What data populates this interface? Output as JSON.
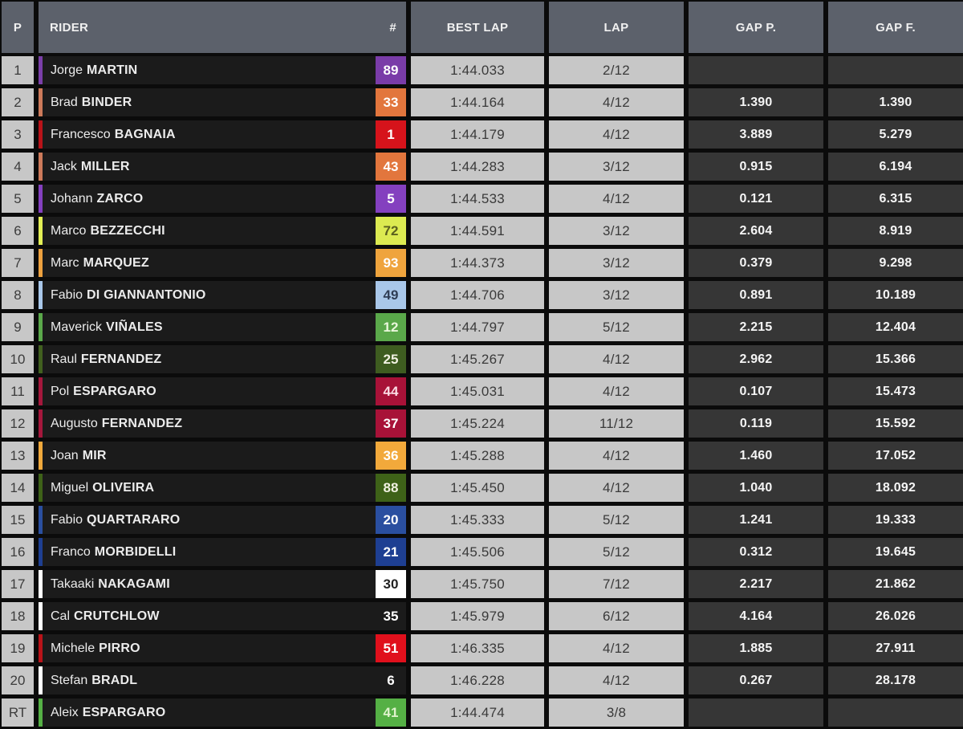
{
  "table_name": "motogp-session-timing",
  "columns": [
    {
      "label": "P"
    },
    {
      "label": "RIDER"
    },
    {
      "label": "#"
    },
    {
      "label": "BEST LAP"
    },
    {
      "label": "LAP"
    },
    {
      "label": "GAP P."
    },
    {
      "label": "GAP F."
    }
  ],
  "palette": {
    "header_bg": "#5c616b",
    "light_cell_bg": "#c7c7c7",
    "dark_cell_bg": "#363636",
    "rider_cell_bg": "#1b1b1b",
    "background": "#0b0b0b"
  },
  "rows": [
    {
      "pos": "1",
      "first": "Jorge",
      "last": "MARTIN",
      "num": "89",
      "best": "1:44.033",
      "lap": "2/12",
      "gap_p": "",
      "gap_f": "",
      "stripe": "#7b3fa9",
      "plate_bg": "#7a3ca8",
      "plate_fg": "#ffffff"
    },
    {
      "pos": "2",
      "first": "Brad",
      "last": "BINDER",
      "num": "33",
      "best": "1:44.164",
      "lap": "4/12",
      "gap_p": "1.390",
      "gap_f": "1.390",
      "stripe": "#cd7a5a",
      "plate_bg": "#e2763d",
      "plate_fg": "#ffffff"
    },
    {
      "pos": "3",
      "first": "Francesco",
      "last": "BAGNAIA",
      "num": "1",
      "best": "1:44.179",
      "lap": "4/12",
      "gap_p": "3.889",
      "gap_f": "5.279",
      "stripe": "#b91319",
      "plate_bg": "#d6131b",
      "plate_fg": "#ffffff"
    },
    {
      "pos": "4",
      "first": "Jack",
      "last": "MILLER",
      "num": "43",
      "best": "1:44.283",
      "lap": "3/12",
      "gap_p": "0.915",
      "gap_f": "6.194",
      "stripe": "#cd7a5a",
      "plate_bg": "#e2763d",
      "plate_fg": "#ffffff"
    },
    {
      "pos": "5",
      "first": "Johann",
      "last": "ZARCO",
      "num": "5",
      "best": "1:44.533",
      "lap": "4/12",
      "gap_p": "0.121",
      "gap_f": "6.315",
      "stripe": "#8440bf",
      "plate_bg": "#8440bf",
      "plate_fg": "#ffffff"
    },
    {
      "pos": "6",
      "first": "Marco",
      "last": "BEZZECCHI",
      "num": "72",
      "best": "1:44.591",
      "lap": "3/12",
      "gap_p": "2.604",
      "gap_f": "8.919",
      "stripe": "#e3ef56",
      "plate_bg": "#dcea51",
      "plate_fg": "#5a5f1e"
    },
    {
      "pos": "7",
      "first": "Marc",
      "last": "MARQUEZ",
      "num": "93",
      "best": "1:44.373",
      "lap": "3/12",
      "gap_p": "0.379",
      "gap_f": "9.298",
      "stripe": "#eda13f",
      "plate_bg": "#efa43d",
      "plate_fg": "#ffffff"
    },
    {
      "pos": "8",
      "first": "Fabio",
      "last": "DI GIANNANTONIO",
      "num": "49",
      "best": "1:44.706",
      "lap": "3/12",
      "gap_p": "0.891",
      "gap_f": "10.189",
      "stripe": "#a9c7e9",
      "plate_bg": "#a9c7e9",
      "plate_fg": "#2f3d55"
    },
    {
      "pos": "9",
      "first": "Maverick",
      "last": "VIÑALES",
      "num": "12",
      "best": "1:44.797",
      "lap": "5/12",
      "gap_p": "2.215",
      "gap_f": "12.404",
      "stripe": "#5aa84a",
      "plate_bg": "#5aa84a",
      "plate_fg": "#eaf7dc"
    },
    {
      "pos": "10",
      "first": "Raul",
      "last": "FERNANDEZ",
      "num": "25",
      "best": "1:45.267",
      "lap": "4/12",
      "gap_p": "2.962",
      "gap_f": "15.366",
      "stripe": "#41601f",
      "plate_bg": "#3e5c20",
      "plate_fg": "#f1f1e2"
    },
    {
      "pos": "11",
      "first": "Pol",
      "last": "ESPARGARO",
      "num": "44",
      "best": "1:45.031",
      "lap": "4/12",
      "gap_p": "0.107",
      "gap_f": "15.473",
      "stripe": "#a5173c",
      "plate_bg": "#a81238",
      "plate_fg": "#fbdce4"
    },
    {
      "pos": "12",
      "first": "Augusto",
      "last": "FERNANDEZ",
      "num": "37",
      "best": "1:45.224",
      "lap": "11/12",
      "gap_p": "0.119",
      "gap_f": "15.592",
      "stripe": "#a5173c",
      "plate_bg": "#a81238",
      "plate_fg": "#ffffff"
    },
    {
      "pos": "13",
      "first": "Joan",
      "last": "MIR",
      "num": "36",
      "best": "1:45.288",
      "lap": "4/12",
      "gap_p": "1.460",
      "gap_f": "17.052",
      "stripe": "#f0a93c",
      "plate_bg": "#f2a93b",
      "plate_fg": "#ffffff"
    },
    {
      "pos": "14",
      "first": "Miguel",
      "last": "OLIVEIRA",
      "num": "88",
      "best": "1:45.450",
      "lap": "4/12",
      "gap_p": "1.040",
      "gap_f": "18.092",
      "stripe": "#3e6218",
      "plate_bg": "#3e6218",
      "plate_fg": "#f1f1e2"
    },
    {
      "pos": "15",
      "first": "Fabio",
      "last": "QUARTARARO",
      "num": "20",
      "best": "1:45.333",
      "lap": "5/12",
      "gap_p": "1.241",
      "gap_f": "19.333",
      "stripe": "#2a4fa0",
      "plate_bg": "#2a4fa0",
      "plate_fg": "#ffffff"
    },
    {
      "pos": "16",
      "first": "Franco",
      "last": "MORBIDELLI",
      "num": "21",
      "best": "1:45.506",
      "lap": "5/12",
      "gap_p": "0.312",
      "gap_f": "19.645",
      "stripe": "#1e3f92",
      "plate_bg": "#1e3f92",
      "plate_fg": "#ffffff"
    },
    {
      "pos": "17",
      "first": "Takaaki",
      "last": "NAKAGAMI",
      "num": "30",
      "best": "1:45.750",
      "lap": "7/12",
      "gap_p": "2.217",
      "gap_f": "21.862",
      "stripe": "#ffffff",
      "plate_bg": "#ffffff",
      "plate_fg": "#222222"
    },
    {
      "pos": "18",
      "first": "Cal",
      "last": "CRUTCHLOW",
      "num": "35",
      "best": "1:45.979",
      "lap": "6/12",
      "gap_p": "4.164",
      "gap_f": "26.026",
      "stripe": "#ffffff",
      "plate_bg": "transparent",
      "plate_fg": "#ffffff"
    },
    {
      "pos": "19",
      "first": "Michele",
      "last": "PIRRO",
      "num": "51",
      "best": "1:46.335",
      "lap": "4/12",
      "gap_p": "1.885",
      "gap_f": "27.911",
      "stripe": "#b91319",
      "plate_bg": "#e0101c",
      "plate_fg": "#ffffff"
    },
    {
      "pos": "20",
      "first": "Stefan",
      "last": "BRADL",
      "num": "6",
      "best": "1:46.228",
      "lap": "4/12",
      "gap_p": "0.267",
      "gap_f": "28.178",
      "stripe": "#ffffff",
      "plate_bg": "transparent",
      "plate_fg": "#ffffff"
    },
    {
      "pos": "RT",
      "first": "Aleix",
      "last": "ESPARGARO",
      "num": "41",
      "best": "1:44.474",
      "lap": "3/8",
      "gap_p": "",
      "gap_f": "",
      "stripe": "#55b045",
      "plate_bg": "#55b045",
      "plate_fg": "#dff3cd"
    }
  ]
}
